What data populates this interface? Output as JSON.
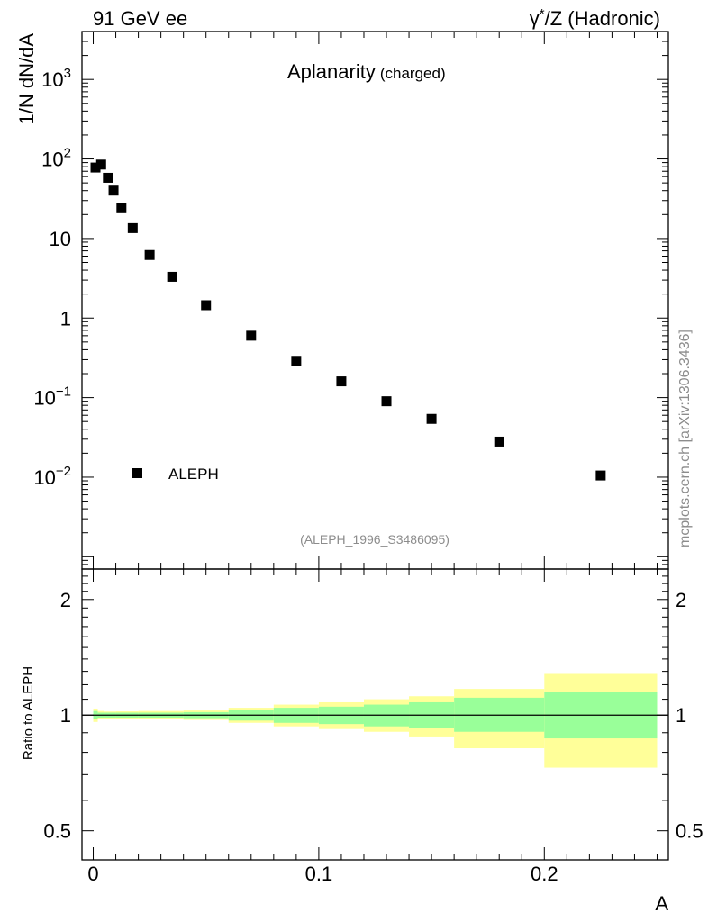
{
  "header": {
    "left": "91 GeV ee",
    "right_gamma": "γ",
    "right_star": "*",
    "right_rest": "/Z (Hadronic)"
  },
  "side_label": "mcplots.cern.ch [arXiv:1306.3436]",
  "reference_label": "(ALEPH_1996_S3486095)",
  "chart_data": [
    {
      "type": "scatter",
      "title": "Aplanarity",
      "subtitle": "(charged)",
      "ylabel": "1/N dN/dA",
      "xlabel": "A",
      "yscale": "log",
      "xlim": [
        -0.005,
        0.255
      ],
      "ylim": [
        0.0007,
        4000
      ],
      "y_ticks": [
        {
          "value": 0.01,
          "mant": "10",
          "exp": "−2"
        },
        {
          "value": 0.1,
          "mant": "10",
          "exp": "−1"
        },
        {
          "value": 1,
          "mant": "1",
          "exp": ""
        },
        {
          "value": 10,
          "mant": "10",
          "exp": ""
        },
        {
          "value": 100,
          "mant": "10",
          "exp": "2"
        },
        {
          "value": 1000,
          "mant": "10",
          "exp": "3"
        }
      ],
      "legend": "ALEPH",
      "legend_position": "bottom-left",
      "series": [
        {
          "name": "ALEPH",
          "points": [
            {
              "x": 0.001,
              "y": 78
            },
            {
              "x": 0.0035,
              "y": 85
            },
            {
              "x": 0.0065,
              "y": 58
            },
            {
              "x": 0.009,
              "y": 40
            },
            {
              "x": 0.0125,
              "y": 24
            },
            {
              "x": 0.0175,
              "y": 13.5
            },
            {
              "x": 0.025,
              "y": 6.2
            },
            {
              "x": 0.035,
              "y": 3.3
            },
            {
              "x": 0.05,
              "y": 1.45
            },
            {
              "x": 0.07,
              "y": 0.6
            },
            {
              "x": 0.09,
              "y": 0.29
            },
            {
              "x": 0.11,
              "y": 0.16
            },
            {
              "x": 0.13,
              "y": 0.09
            },
            {
              "x": 0.15,
              "y": 0.054
            },
            {
              "x": 0.18,
              "y": 0.028
            },
            {
              "x": 0.225,
              "y": 0.0105
            }
          ]
        }
      ]
    },
    {
      "type": "area",
      "ylabel": "Ratio to ALEPH",
      "xlabel": "A",
      "yscale": "log",
      "xlim": [
        -0.005,
        0.255
      ],
      "ylim": [
        0.42,
        2.4
      ],
      "y_ticks": [
        0.5,
        1,
        2
      ],
      "y_tick_labels": [
        "0.5",
        "1",
        "2"
      ],
      "x_ticks": [
        0,
        0.1,
        0.2
      ],
      "x_tick_labels": [
        "0",
        "0.1",
        "0.2"
      ],
      "reference_line": 1,
      "band_colors": {
        "outer": "#ffff99",
        "inner": "#99ff99"
      },
      "bins": [
        {
          "x0": 0.0,
          "x1": 0.002,
          "inner": [
            0.975,
            1.025
          ],
          "outer": [
            0.96,
            1.04
          ]
        },
        {
          "x0": 0.002,
          "x1": 0.005,
          "inner": [
            0.985,
            1.015
          ],
          "outer": [
            0.975,
            1.025
          ]
        },
        {
          "x0": 0.005,
          "x1": 0.01,
          "inner": [
            0.985,
            1.015
          ],
          "outer": [
            0.978,
            1.022
          ]
        },
        {
          "x0": 0.01,
          "x1": 0.02,
          "inner": [
            0.985,
            1.015
          ],
          "outer": [
            0.977,
            1.023
          ]
        },
        {
          "x0": 0.02,
          "x1": 0.04,
          "inner": [
            0.985,
            1.015
          ],
          "outer": [
            0.975,
            1.025
          ]
        },
        {
          "x0": 0.04,
          "x1": 0.06,
          "inner": [
            0.982,
            1.018
          ],
          "outer": [
            0.972,
            1.028
          ]
        },
        {
          "x0": 0.06,
          "x1": 0.08,
          "inner": [
            0.968,
            1.032
          ],
          "outer": [
            0.955,
            1.045
          ]
        },
        {
          "x0": 0.08,
          "x1": 0.1,
          "inner": [
            0.955,
            1.045
          ],
          "outer": [
            0.935,
            1.065
          ]
        },
        {
          "x0": 0.1,
          "x1": 0.12,
          "inner": [
            0.948,
            1.052
          ],
          "outer": [
            0.92,
            1.08
          ]
        },
        {
          "x0": 0.12,
          "x1": 0.14,
          "inner": [
            0.935,
            1.065
          ],
          "outer": [
            0.905,
            1.1
          ]
        },
        {
          "x0": 0.14,
          "x1": 0.16,
          "inner": [
            0.925,
            1.08
          ],
          "outer": [
            0.88,
            1.12
          ]
        },
        {
          "x0": 0.16,
          "x1": 0.2,
          "inner": [
            0.905,
            1.11
          ],
          "outer": [
            0.82,
            1.17
          ]
        },
        {
          "x0": 0.2,
          "x1": 0.25,
          "inner": [
            0.87,
            1.15
          ],
          "outer": [
            0.73,
            1.28
          ]
        }
      ]
    }
  ]
}
